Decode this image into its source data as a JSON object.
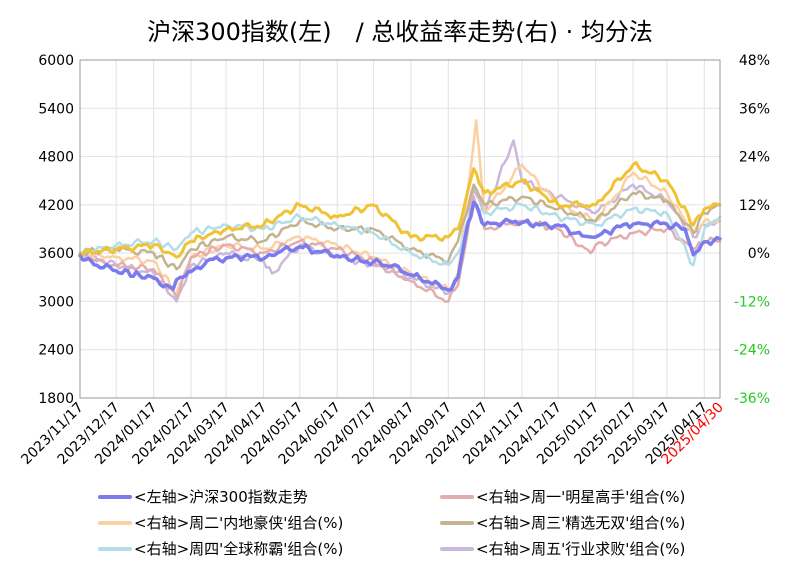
{
  "chart_data": {
    "type": "line",
    "title": "沪深300指数(左)　/ 总收益率走势(右) · 均分法",
    "x_ticks": [
      "2023/11/17",
      "2023/12/17",
      "2024/01/17",
      "2024/02/17",
      "2024/03/17",
      "2024/04/17",
      "2024/05/17",
      "2024/06/17",
      "2024/07/17",
      "2024/08/17",
      "2024/09/17",
      "2024/10/17",
      "2024/11/17",
      "2024/12/17",
      "2025/01/17",
      "2025/02/17",
      "2025/03/17",
      "2025/04/17",
      "2025/04/30"
    ],
    "x_range": [
      "2023-11-17",
      "2025-04-30"
    ],
    "y_left": {
      "range": [
        1800,
        6000
      ],
      "ticks": [
        "6000",
        "5400",
        "4800",
        "4200",
        "3600",
        "3000",
        "2400",
        "1800"
      ]
    },
    "y_right": {
      "range": [
        -0.36,
        0.48
      ],
      "ticks": [
        {
          "label": "48%",
          "value": 0.48,
          "color": "#000000"
        },
        {
          "label": "36%",
          "value": 0.36,
          "color": "#000000"
        },
        {
          "label": "24%",
          "value": 0.24,
          "color": "#000000"
        },
        {
          "label": "12%",
          "value": 0.12,
          "color": "#000000"
        },
        {
          "label": "0%",
          "value": 0.0,
          "color": "#000000"
        },
        {
          "label": "-12%",
          "value": -0.12,
          "color": "#22cc22"
        },
        {
          "label": "-24%",
          "value": -0.24,
          "color": "#22cc22"
        },
        {
          "label": "-36%",
          "value": -0.36,
          "color": "#22cc22"
        }
      ]
    },
    "last_tick_color": "#ff0000",
    "series": [
      {
        "name": "<左轴>沪深300指数走势",
        "axis": "left",
        "color": "#7b7bef",
        "width": 3.5,
        "points": [
          [
            "2023-11-17",
            3570
          ],
          [
            "2023-12-01",
            3450
          ],
          [
            "2023-12-17",
            3380
          ],
          [
            "2024-01-05",
            3330
          ],
          [
            "2024-01-17",
            3290
          ],
          [
            "2024-02-02",
            3150
          ],
          [
            "2024-02-08",
            3300
          ],
          [
            "2024-02-17",
            3370
          ],
          [
            "2024-03-01",
            3500
          ],
          [
            "2024-03-17",
            3540
          ],
          [
            "2024-04-01",
            3560
          ],
          [
            "2024-04-17",
            3530
          ],
          [
            "2024-05-01",
            3620
          ],
          [
            "2024-05-17",
            3680
          ],
          [
            "2024-06-01",
            3620
          ],
          [
            "2024-06-17",
            3570
          ],
          [
            "2024-07-01",
            3520
          ],
          [
            "2024-07-17",
            3490
          ],
          [
            "2024-08-01",
            3440
          ],
          [
            "2024-08-17",
            3330
          ],
          [
            "2024-09-01",
            3240
          ],
          [
            "2024-09-17",
            3140
          ],
          [
            "2024-09-25",
            3300
          ],
          [
            "2024-10-01",
            3800
          ],
          [
            "2024-10-08",
            4230
          ],
          [
            "2024-10-17",
            3950
          ],
          [
            "2024-11-01",
            3980
          ],
          [
            "2024-11-17",
            3980
          ],
          [
            "2024-12-01",
            3950
          ],
          [
            "2024-12-17",
            3950
          ],
          [
            "2025-01-01",
            3850
          ],
          [
            "2025-01-13",
            3800
          ],
          [
            "2025-01-17",
            3800
          ],
          [
            "2025-02-01",
            3900
          ],
          [
            "2025-02-17",
            3960
          ],
          [
            "2025-03-01",
            3960
          ],
          [
            "2025-03-17",
            3960
          ],
          [
            "2025-04-01",
            3900
          ],
          [
            "2025-04-08",
            3580
          ],
          [
            "2025-04-17",
            3740
          ],
          [
            "2025-04-30",
            3780
          ]
        ]
      },
      {
        "name": "<右轴>周一'明星高手'组合(%)",
        "axis": "right",
        "color": "#e4adad",
        "width": 2.5,
        "points": [
          [
            "2023-11-17",
            0.0
          ],
          [
            "2023-12-01",
            -0.02
          ],
          [
            "2023-12-17",
            -0.03
          ],
          [
            "2024-01-17",
            -0.04
          ],
          [
            "2024-02-05",
            -0.11
          ],
          [
            "2024-02-17",
            -0.01
          ],
          [
            "2024-03-17",
            0.02
          ],
          [
            "2024-04-17",
            0.0
          ],
          [
            "2024-05-17",
            0.03
          ],
          [
            "2024-06-17",
            0.01
          ],
          [
            "2024-07-17",
            -0.02
          ],
          [
            "2024-08-17",
            -0.07
          ],
          [
            "2024-09-17",
            -0.12
          ],
          [
            "2024-09-25",
            -0.08
          ],
          [
            "2024-10-08",
            0.14
          ],
          [
            "2024-10-17",
            0.06
          ],
          [
            "2024-11-17",
            0.08
          ],
          [
            "2024-12-17",
            0.06
          ],
          [
            "2025-01-13",
            0.0
          ],
          [
            "2025-01-17",
            0.02
          ],
          [
            "2025-02-17",
            0.05
          ],
          [
            "2025-03-17",
            0.06
          ],
          [
            "2025-04-08",
            0.01
          ],
          [
            "2025-04-17",
            0.03
          ],
          [
            "2025-04-30",
            0.03
          ]
        ]
      },
      {
        "name": "<右轴>周二'内地豪侠'组合(%)",
        "axis": "right",
        "color": "#fbd0a3",
        "width": 2.5,
        "points": [
          [
            "2023-11-17",
            0.0
          ],
          [
            "2023-12-17",
            -0.01
          ],
          [
            "2024-01-17",
            -0.02
          ],
          [
            "2024-02-05",
            -0.1
          ],
          [
            "2024-02-17",
            -0.01
          ],
          [
            "2024-03-17",
            0.02
          ],
          [
            "2024-04-17",
            0.01
          ],
          [
            "2024-05-17",
            0.04
          ],
          [
            "2024-06-17",
            0.02
          ],
          [
            "2024-07-17",
            -0.01
          ],
          [
            "2024-08-17",
            -0.05
          ],
          [
            "2024-09-17",
            -0.09
          ],
          [
            "2024-09-25",
            -0.05
          ],
          [
            "2024-10-10",
            0.33
          ],
          [
            "2024-10-17",
            0.1
          ],
          [
            "2024-11-17",
            0.22
          ],
          [
            "2024-12-17",
            0.12
          ],
          [
            "2025-01-17",
            0.08
          ],
          [
            "2025-02-17",
            0.2
          ],
          [
            "2025-03-17",
            0.15
          ],
          [
            "2025-04-08",
            0.05
          ],
          [
            "2025-04-17",
            0.08
          ],
          [
            "2025-04-30",
            0.08
          ]
        ]
      },
      {
        "name": "<右轴>周三'精选无双'组合(%)",
        "axis": "right",
        "color": "#c4b38f",
        "width": 2.5,
        "points": [
          [
            "2023-11-17",
            0.0
          ],
          [
            "2023-12-17",
            0.01
          ],
          [
            "2024-01-17",
            0.0
          ],
          [
            "2024-02-05",
            -0.04
          ],
          [
            "2024-02-17",
            0.01
          ],
          [
            "2024-03-17",
            0.04
          ],
          [
            "2024-04-17",
            0.03
          ],
          [
            "2024-05-17",
            0.08
          ],
          [
            "2024-06-17",
            0.06
          ],
          [
            "2024-07-17",
            0.06
          ],
          [
            "2024-08-17",
            0.01
          ],
          [
            "2024-09-17",
            -0.02
          ],
          [
            "2024-09-25",
            0.03
          ],
          [
            "2024-10-08",
            0.17
          ],
          [
            "2024-10-17",
            0.12
          ],
          [
            "2024-11-17",
            0.14
          ],
          [
            "2024-12-17",
            0.11
          ],
          [
            "2025-01-17",
            0.08
          ],
          [
            "2025-02-17",
            0.15
          ],
          [
            "2025-03-17",
            0.13
          ],
          [
            "2025-04-08",
            0.05
          ],
          [
            "2025-04-17",
            0.1
          ],
          [
            "2025-04-30",
            0.12
          ]
        ]
      },
      {
        "name": "<右轴>周四'全球称霸'组合(%)",
        "axis": "right",
        "color": "#b3dde8",
        "width": 2.5,
        "points": [
          [
            "2023-11-17",
            0.0
          ],
          [
            "2023-12-17",
            0.02
          ],
          [
            "2024-01-17",
            0.03
          ],
          [
            "2024-02-05",
            0.01
          ],
          [
            "2024-02-17",
            0.05
          ],
          [
            "2024-03-17",
            0.07
          ],
          [
            "2024-04-17",
            0.06
          ],
          [
            "2024-05-17",
            0.09
          ],
          [
            "2024-06-17",
            0.07
          ],
          [
            "2024-07-17",
            0.05
          ],
          [
            "2024-08-17",
            0.0
          ],
          [
            "2024-09-17",
            -0.03
          ],
          [
            "2024-09-25",
            0.0
          ],
          [
            "2024-10-08",
            0.12
          ],
          [
            "2024-10-17",
            0.1
          ],
          [
            "2024-11-17",
            0.12
          ],
          [
            "2024-12-17",
            0.09
          ],
          [
            "2025-01-17",
            0.07
          ],
          [
            "2025-02-17",
            0.11
          ],
          [
            "2025-03-17",
            0.1
          ],
          [
            "2025-04-08",
            -0.03
          ],
          [
            "2025-04-17",
            0.06
          ],
          [
            "2025-04-30",
            0.09
          ]
        ]
      },
      {
        "name": "<右轴>周五'行业求败'组合(%)",
        "axis": "right",
        "color": "#c9b9dc",
        "width": 2.5,
        "points": [
          [
            "2023-11-17",
            0.0
          ],
          [
            "2023-12-17",
            -0.03
          ],
          [
            "2024-01-17",
            -0.05
          ],
          [
            "2024-02-05",
            -0.12
          ],
          [
            "2024-02-17",
            -0.03
          ],
          [
            "2024-03-17",
            0.0
          ],
          [
            "2024-04-17",
            -0.02
          ],
          [
            "2024-04-24",
            -0.05
          ],
          [
            "2024-05-17",
            0.02
          ],
          [
            "2024-06-17",
            -0.01
          ],
          [
            "2024-07-17",
            -0.03
          ],
          [
            "2024-08-17",
            -0.06
          ],
          [
            "2024-09-17",
            -0.1
          ],
          [
            "2024-09-25",
            -0.06
          ],
          [
            "2024-10-08",
            0.16
          ],
          [
            "2024-10-17",
            0.1
          ],
          [
            "2024-11-10",
            0.28
          ],
          [
            "2024-11-17",
            0.18
          ],
          [
            "2024-12-17",
            0.14
          ],
          [
            "2025-01-17",
            0.1
          ],
          [
            "2025-02-17",
            0.17
          ],
          [
            "2025-03-17",
            0.13
          ],
          [
            "2025-04-08",
            0.04
          ],
          [
            "2025-04-17",
            0.07
          ],
          [
            "2025-04-30",
            0.08
          ]
        ]
      },
      {
        "name": "",
        "axis": "right",
        "color": "#f1c232",
        "width": 3,
        "points": [
          [
            "2023-11-17",
            0.0
          ],
          [
            "2023-12-17",
            0.01
          ],
          [
            "2024-01-17",
            0.02
          ],
          [
            "2024-02-05",
            -0.01
          ],
          [
            "2024-02-17",
            0.03
          ],
          [
            "2024-03-17",
            0.06
          ],
          [
            "2024-04-17",
            0.07
          ],
          [
            "2024-05-17",
            0.12
          ],
          [
            "2024-06-17",
            0.09
          ],
          [
            "2024-07-17",
            0.12
          ],
          [
            "2024-08-17",
            0.04
          ],
          [
            "2024-09-17",
            0.04
          ],
          [
            "2024-09-25",
            0.06
          ],
          [
            "2024-10-08",
            0.21
          ],
          [
            "2024-10-17",
            0.15
          ],
          [
            "2024-11-17",
            0.18
          ],
          [
            "2024-12-17",
            0.12
          ],
          [
            "2025-01-17",
            0.12
          ],
          [
            "2025-02-17",
            0.22
          ],
          [
            "2025-03-17",
            0.18
          ],
          [
            "2025-04-08",
            0.07
          ],
          [
            "2025-04-17",
            0.11
          ],
          [
            "2025-04-30",
            0.12
          ]
        ]
      }
    ],
    "legend": [
      {
        "label": "<左轴>沪深300指数走势",
        "color": "#7b7bef"
      },
      {
        "label": "<右轴>周一'明星高手'组合(%)",
        "color": "#e4adad"
      },
      {
        "label": "<右轴>周二'内地豪侠'组合(%)",
        "color": "#fbd0a3"
      },
      {
        "label": "<右轴>周三'精选无双'组合(%)",
        "color": "#c4b38f"
      },
      {
        "label": "<右轴>周四'全球称霸'组合(%)",
        "color": "#b3dde8"
      },
      {
        "label": "<右轴>周五'行业求败'组合(%)",
        "color": "#c9b9dc"
      }
    ],
    "grid": true,
    "legend_position": "bottom"
  }
}
